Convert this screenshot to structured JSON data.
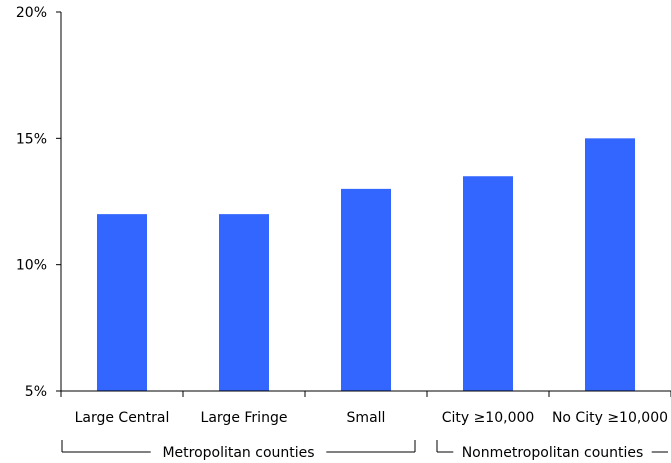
{
  "chart_data": {
    "type": "bar",
    "title": "",
    "xlabel": "",
    "ylabel": "",
    "categories": [
      "Large Central",
      "Large Fringe",
      "Small",
      "City ≥10,000",
      "No City ≥10,000"
    ],
    "values": [
      12.0,
      12.0,
      13.0,
      13.5,
      15.0
    ],
    "ylim": [
      5,
      20
    ],
    "yticks": [
      5,
      10,
      15,
      20
    ],
    "ytick_labels": [
      "5%",
      "10%",
      "15%",
      "20%"
    ],
    "category_groups": [
      {
        "label": "Metropolitan counties",
        "categories": [
          "Large Central",
          "Large Fringe",
          "Small"
        ]
      },
      {
        "label": "Nonmetropolitan counties",
        "categories": [
          "City ≥10,000",
          "No City ≥10,000"
        ]
      }
    ],
    "bar_color": "#3366FF",
    "grid": false,
    "legend": "none"
  }
}
